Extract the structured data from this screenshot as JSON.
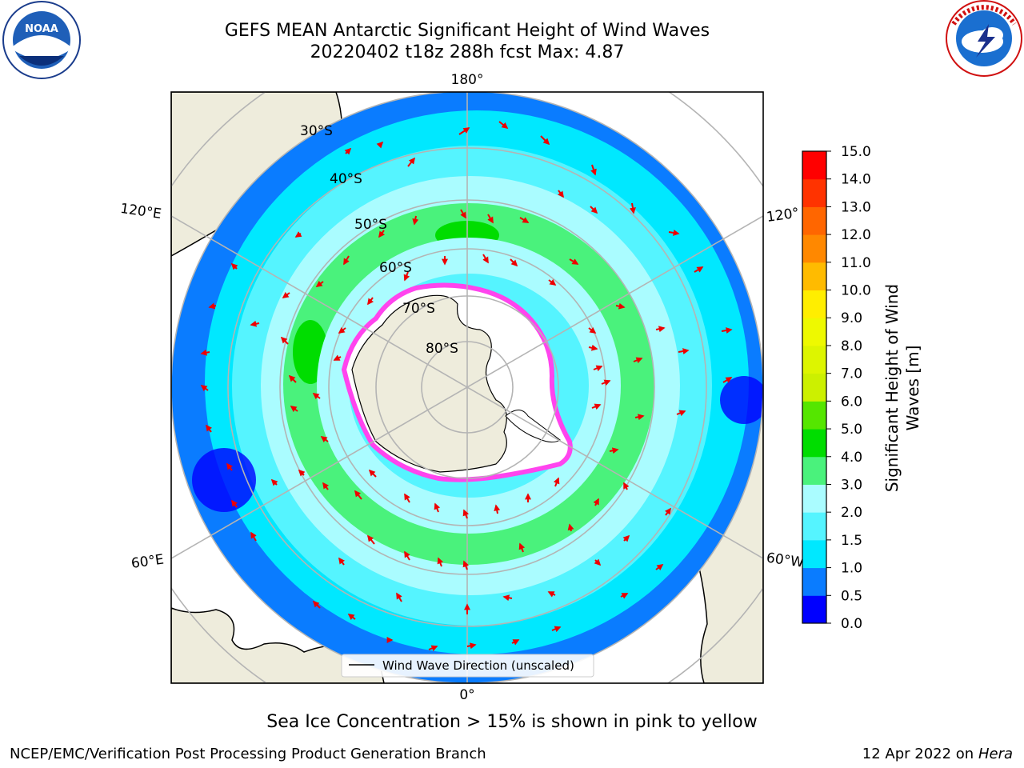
{
  "header": {
    "title_line1": "GEFS MEAN Antarctic Significant Height of Wind Waves",
    "title_line2": "20220402 t18z 288h fcst   Max: 4.87"
  },
  "logos": {
    "left": {
      "name": "noaa-logo",
      "text": "NOAA",
      "ring_text": "NATIONAL OCEANIC AND ATMOSPHERIC ADMINISTRATION · U.S. DEPARTMENT OF COMMERCE"
    },
    "right": {
      "name": "nws-logo",
      "ring_text": "NATIONAL WEATHER SERVICE"
    }
  },
  "map": {
    "projection": "south-polar-stereographic",
    "lon_labels": {
      "top": "180°",
      "bottom": "0°",
      "upper_left": "120°E",
      "lower_left": "60°E",
      "upper_right": "120°",
      "lower_right": "60°W"
    },
    "lat_labels": [
      "30°S",
      "40°S",
      "50°S",
      "60°S",
      "70°S",
      "80°S"
    ],
    "legend": "Wind Wave Direction (unscaled)",
    "colors": {
      "land": "#eeecdc",
      "ice_edge": "#ff44ee",
      "arrow": "#ee0000"
    }
  },
  "colorbar": {
    "label": "Significant Height of Wind Waves [m]",
    "label_line1": "Significant Height of Wind",
    "label_line2": "Waves [m]",
    "ticks": [
      "15.0",
      "14.0",
      "13.0",
      "12.0",
      "11.0",
      "10.0",
      "9.0",
      "8.0",
      "7.0",
      "6.0",
      "5.0",
      "4.0",
      "3.0",
      "2.0",
      "1.5",
      "1.0",
      "0.5",
      "0.0"
    ],
    "bins": [
      {
        "range": "0.0-0.5",
        "color": "#0000ff"
      },
      {
        "range": "0.5-1.0",
        "color": "#0a7cff"
      },
      {
        "range": "1.0-1.5",
        "color": "#00e8ff"
      },
      {
        "range": "1.5-2.0",
        "color": "#55f4ff"
      },
      {
        "range": "2.0-3.0",
        "color": "#aafcff"
      },
      {
        "range": "3.0-4.0",
        "color": "#4af27c"
      },
      {
        "range": "4.0-5.0",
        "color": "#00dd00"
      },
      {
        "range": "5.0-6.0",
        "color": "#55e600"
      },
      {
        "range": "6.0-7.0",
        "color": "#ccf000"
      },
      {
        "range": "7.0-8.0",
        "color": "#ddf500"
      },
      {
        "range": "8.0-9.0",
        "color": "#eef900"
      },
      {
        "range": "9.0-10.0",
        "color": "#ffee00"
      },
      {
        "range": "10.0-11.0",
        "color": "#ffbb00"
      },
      {
        "range": "11.0-12.0",
        "color": "#ff8800"
      },
      {
        "range": "12.0-13.0",
        "color": "#ff6600"
      },
      {
        "range": "13.0-14.0",
        "color": "#ff3300"
      },
      {
        "range": "14.0-15.0",
        "color": "#ff0000"
      }
    ]
  },
  "caption": "Sea Ice Concentration > 15% is shown in pink to yellow",
  "footer": {
    "left": "NCEP/EMC/Verification Post Processing Product Generation Branch",
    "right_date": "12 Apr 2022 on ",
    "right_host": "Hera"
  }
}
